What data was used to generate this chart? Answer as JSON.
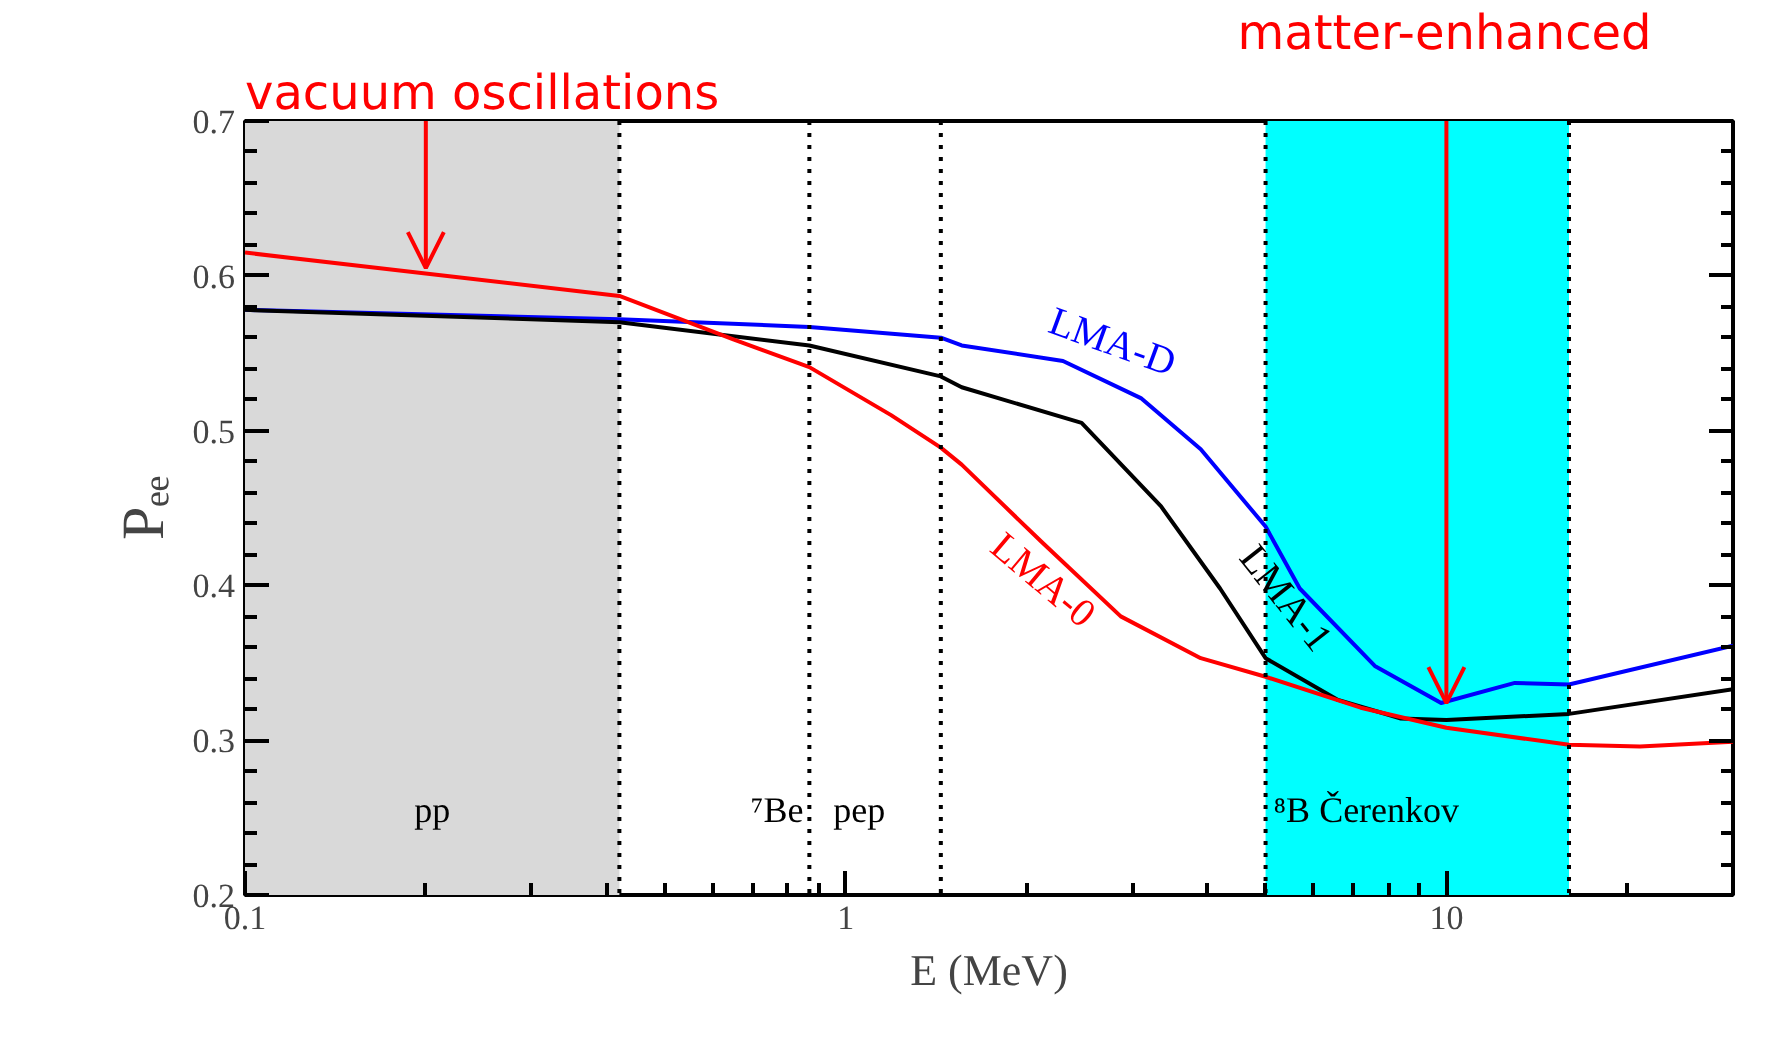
{
  "chart_data": {
    "type": "line",
    "xlabel": "E (MeV)",
    "ylabel": "Pₑₑ",
    "log": "x",
    "xlim": [
      0.1,
      30
    ],
    "xticks": [
      0.1,
      1,
      10
    ],
    "ylim": [
      0.2,
      0.7
    ],
    "yticks": [
      0.2,
      0.3,
      0.4,
      0.5,
      0.6,
      0.7
    ],
    "grid": false,
    "line_style": "solid",
    "marker": "none",
    "series": [
      {
        "name": "LMA-D",
        "color": "#0000ff",
        "x": [
          0.1,
          0.42,
          0.87,
          1.44,
          1.56,
          2.3,
          3.1,
          3.9,
          5.0,
          5.7,
          7.6,
          9.8,
          13,
          16,
          30
        ],
        "values": [
          0.578,
          0.572,
          0.567,
          0.56,
          0.555,
          0.545,
          0.521,
          0.488,
          0.438,
          0.398,
          0.348,
          0.324,
          0.337,
          0.336,
          0.361
        ]
      },
      {
        "name": "LMA-1",
        "color": "#000000",
        "x": [
          0.1,
          0.42,
          0.87,
          1.44,
          1.56,
          2.47,
          3.35,
          4.2,
          5.0,
          6.6,
          8.4,
          10,
          16,
          30
        ],
        "values": [
          0.578,
          0.57,
          0.555,
          0.535,
          0.528,
          0.505,
          0.451,
          0.398,
          0.353,
          0.326,
          0.314,
          0.313,
          0.317,
          0.333
        ]
      },
      {
        "name": "LMA-0",
        "color": "#ff0000",
        "x": [
          0.1,
          0.42,
          0.65,
          0.87,
          1.19,
          1.44,
          1.56,
          2.12,
          2.87,
          3.9,
          5.0,
          7.2,
          10,
          16,
          21,
          30
        ],
        "values": [
          0.615,
          0.587,
          0.559,
          0.541,
          0.51,
          0.489,
          0.478,
          0.428,
          0.38,
          0.353,
          0.341,
          0.321,
          0.308,
          0.297,
          0.296,
          0.299
        ]
      }
    ],
    "bands": [
      {
        "axis": "x",
        "from": 0.1,
        "to": 0.42,
        "color": "#d9d9d9"
      },
      {
        "axis": "x",
        "from": 5.0,
        "to": 16,
        "color": "#00ffff"
      }
    ],
    "ref_lines": [
      {
        "axis": "x",
        "value": 0.42,
        "line_style": "dotted",
        "color": "#000000"
      },
      {
        "axis": "x",
        "value": 0.87,
        "line_style": "dotted",
        "color": "#000000"
      },
      {
        "axis": "x",
        "value": 1.44,
        "line_style": "dotted",
        "color": "#000000"
      },
      {
        "axis": "x",
        "value": 5.0,
        "line_style": "dotted",
        "color": "#000000"
      },
      {
        "axis": "x",
        "value": 16,
        "line_style": "dotted",
        "color": "#000000"
      }
    ],
    "annotations": [
      {
        "text": "vacuum oscillations",
        "x": 0.2,
        "y": 0.605
      },
      {
        "text": "matter-enhanced",
        "x": 10,
        "y": 0.324
      },
      "pp",
      "⁷Be",
      "pep",
      "⁸B Čerenkov"
    ]
  }
}
